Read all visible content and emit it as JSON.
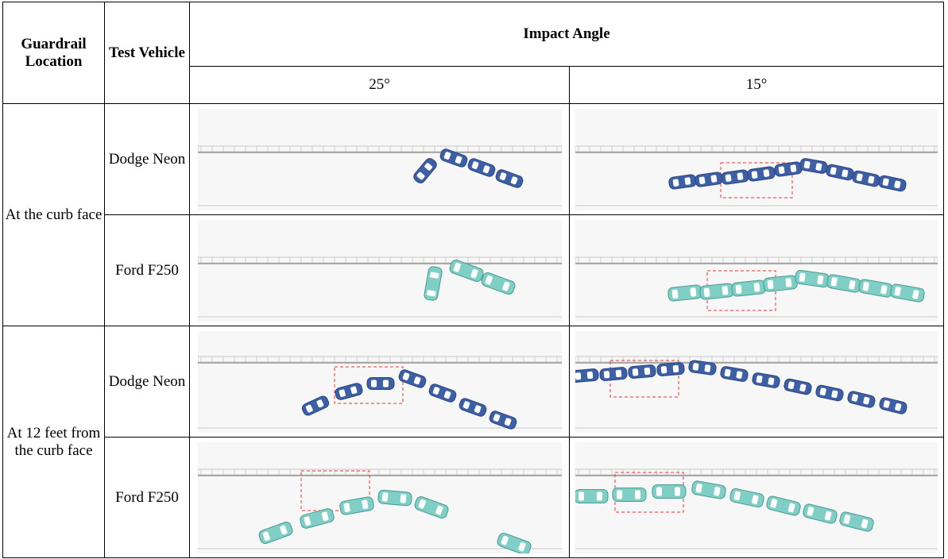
{
  "header": {
    "guardrail_location": "Guardrail Location",
    "test_vehicle": "Test Vehicle",
    "impact_angle": "Impact Angle",
    "angles": [
      "25°",
      "15°"
    ]
  },
  "rows": [
    {
      "location": "At the curb face",
      "vehicles": [
        "Dodge Neon",
        "Ford F250"
      ]
    },
    {
      "location": "At 12 feet from the curb face",
      "vehicles": [
        "Dodge Neon",
        "Ford F250"
      ]
    }
  ]
}
